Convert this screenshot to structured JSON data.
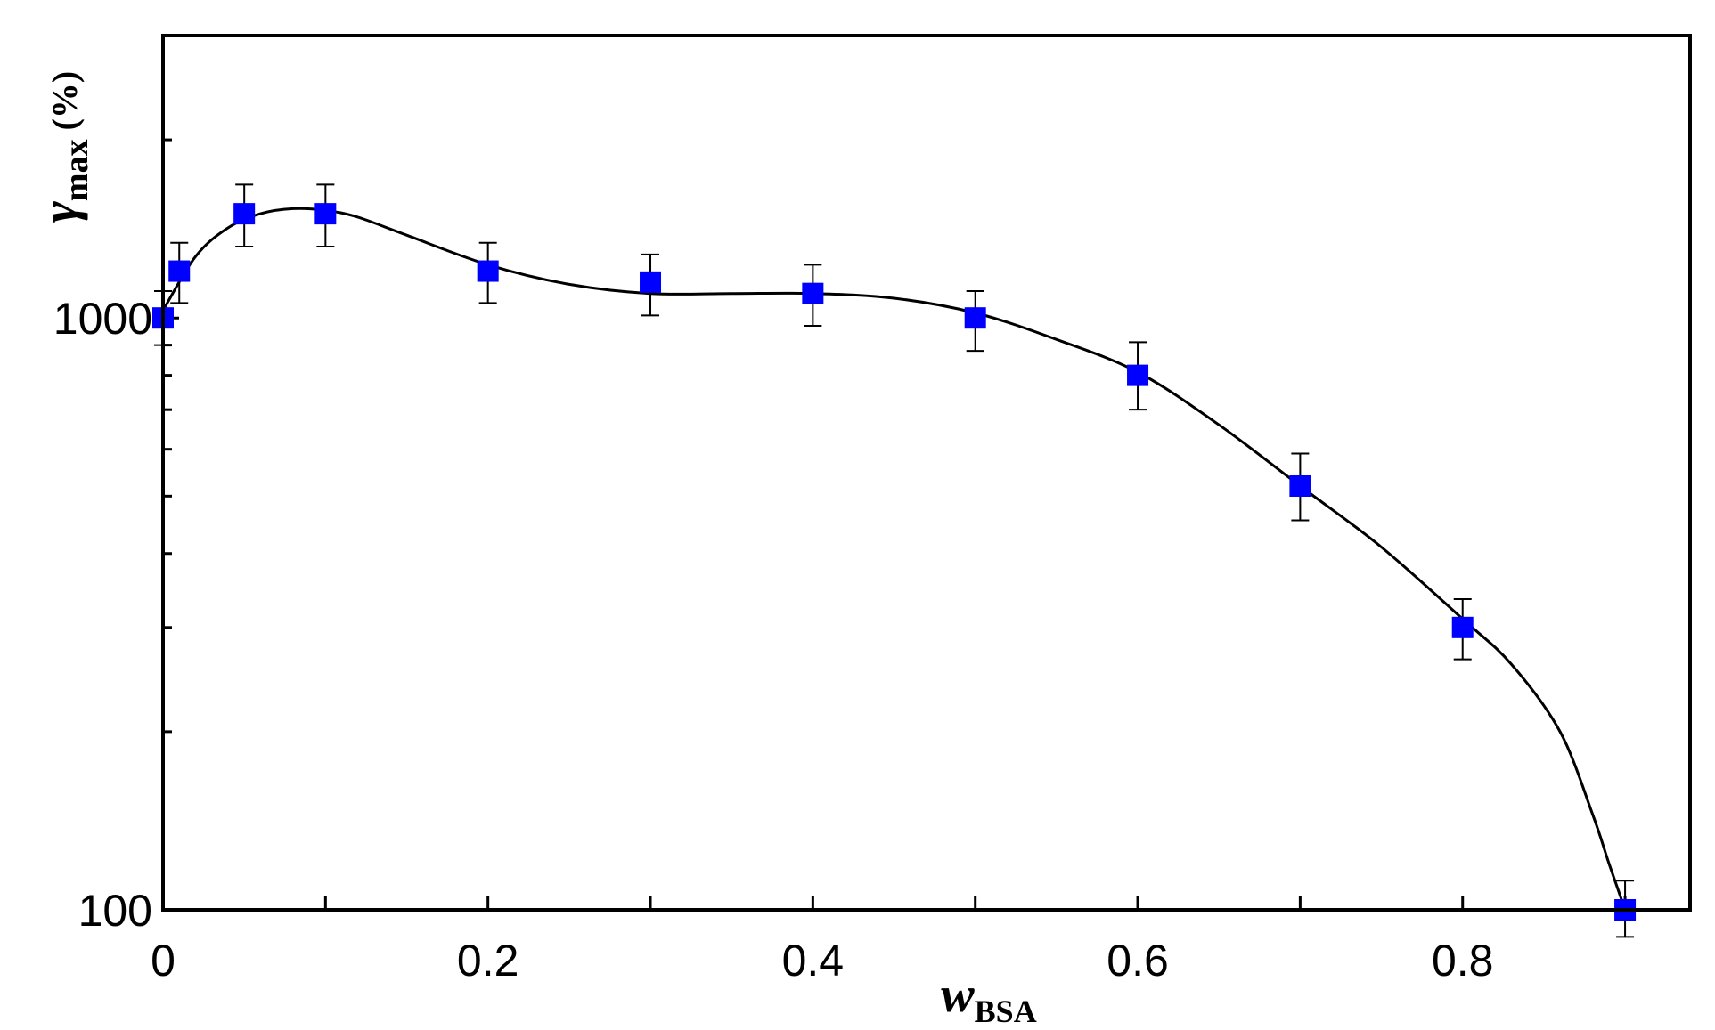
{
  "chart_data": {
    "type": "scatter",
    "title": "",
    "xlabel": {
      "main": "w",
      "sub": "BSA"
    },
    "ylabel": {
      "main": "γ",
      "sub": "max",
      "suffix": " (%)"
    },
    "xlim": [
      0,
      0.94
    ],
    "ylim": [
      100,
      3000
    ],
    "y_scale": "log",
    "x_ticks": [
      0,
      0.1,
      0.2,
      0.3,
      0.4,
      0.5,
      0.6,
      0.7,
      0.8,
      0.9
    ],
    "x_tick_labels": [
      "0",
      "0.2",
      "0.4",
      "0.6",
      "0.8"
    ],
    "x_tick_label_values": [
      0,
      0.2,
      0.4,
      0.6,
      0.8
    ],
    "y_tick_labels": [
      "100",
      "1000"
    ],
    "y_tick_label_values": [
      100,
      1000
    ],
    "grid": false,
    "legend": "none",
    "series": [
      {
        "marker": "square",
        "color": "#0000ff",
        "x": [
          0,
          0.01,
          0.05,
          0.1,
          0.2,
          0.3,
          0.4,
          0.5,
          0.6,
          0.7,
          0.8,
          0.9
        ],
        "y": [
          1000,
          1200,
          1500,
          1500,
          1200,
          1150,
          1100,
          1000,
          800,
          520,
          300,
          100
        ],
        "y_err_low": [
          900,
          1060,
          1320,
          1320,
          1060,
          1010,
          970,
          880,
          700,
          455,
          265,
          90
        ],
        "y_err_high": [
          1110,
          1340,
          1680,
          1680,
          1340,
          1280,
          1230,
          1110,
          910,
          590,
          335,
          112
        ]
      }
    ],
    "fit_curve": {
      "color": "#000000",
      "x": [
        0,
        0.02,
        0.04,
        0.06,
        0.08,
        0.1,
        0.12,
        0.15,
        0.2,
        0.25,
        0.3,
        0.35,
        0.4,
        0.45,
        0.5,
        0.55,
        0.6,
        0.65,
        0.7,
        0.75,
        0.8,
        0.83,
        0.86,
        0.88,
        0.89,
        0.9
      ],
      "y": [
        1030,
        1270,
        1420,
        1500,
        1530,
        1520,
        1480,
        1380,
        1230,
        1140,
        1100,
        1100,
        1100,
        1080,
        1020,
        920,
        810,
        660,
        520,
        410,
        310,
        260,
        200,
        145,
        120,
        100
      ]
    }
  }
}
